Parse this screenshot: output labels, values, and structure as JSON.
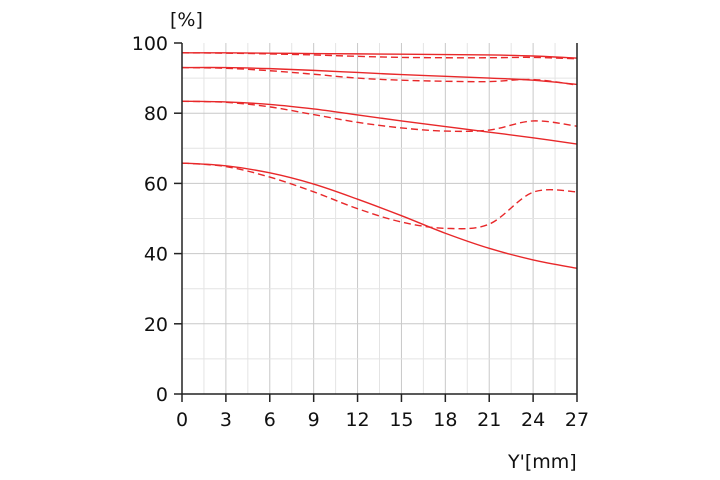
{
  "chart_data": {
    "type": "line",
    "title": "",
    "xlabel": "Y'[mm]",
    "ylabel": "[%]",
    "xlim": [
      0,
      27
    ],
    "ylim": [
      0,
      100
    ],
    "xticks": [
      0,
      3,
      6,
      9,
      12,
      15,
      18,
      21,
      24,
      27
    ],
    "yticks": [
      0,
      20,
      40,
      60,
      80,
      100
    ],
    "grid": true,
    "legend": "none",
    "line_color": "#e8282a",
    "series": [
      {
        "style": "solid",
        "x": [
          0,
          3,
          6,
          9,
          12,
          15,
          18,
          21,
          24,
          27
        ],
        "y": [
          97.2,
          97.2,
          97.1,
          97.0,
          96.9,
          96.8,
          96.7,
          96.6,
          96.3,
          95.7
        ]
      },
      {
        "style": "dashed",
        "x": [
          0,
          3,
          6,
          9,
          12,
          15,
          18,
          21,
          24,
          27
        ],
        "y": [
          97.2,
          97.1,
          96.9,
          96.6,
          96.2,
          95.9,
          95.8,
          95.8,
          95.9,
          95.5
        ]
      },
      {
        "style": "solid",
        "x": [
          0,
          3,
          6,
          9,
          12,
          15,
          18,
          21,
          24,
          27
        ],
        "y": [
          93.0,
          93.0,
          92.7,
          92.2,
          91.6,
          91.0,
          90.5,
          90.0,
          89.4,
          88.2
        ]
      },
      {
        "style": "dashed",
        "x": [
          0,
          3,
          6,
          9,
          12,
          15,
          18,
          21,
          24,
          27
        ],
        "y": [
          93.0,
          92.8,
          92.1,
          91.1,
          90.0,
          89.4,
          89.1,
          89.0,
          89.6,
          88.0
        ]
      },
      {
        "style": "solid",
        "x": [
          0,
          3,
          6,
          9,
          12,
          15,
          18,
          21,
          24,
          27
        ],
        "y": [
          83.4,
          83.2,
          82.5,
          81.2,
          79.5,
          77.8,
          76.2,
          74.6,
          73.0,
          71.2
        ]
      },
      {
        "style": "dashed",
        "x": [
          0,
          3,
          6,
          9,
          12,
          15,
          18,
          21,
          24,
          27
        ],
        "y": [
          83.4,
          83.1,
          81.8,
          79.6,
          77.4,
          75.8,
          74.9,
          75.2,
          77.8,
          76.3
        ]
      },
      {
        "style": "solid",
        "x": [
          0,
          3,
          6,
          9,
          12,
          15,
          18,
          21,
          24,
          27
        ],
        "y": [
          65.8,
          65.0,
          63.0,
          59.8,
          55.5,
          50.8,
          45.8,
          41.5,
          38.2,
          35.8
        ]
      },
      {
        "style": "dashed",
        "x": [
          0,
          3,
          6,
          9,
          12,
          15,
          18,
          21,
          24,
          27
        ],
        "y": [
          65.8,
          64.8,
          61.8,
          57.6,
          52.8,
          49.0,
          47.2,
          48.4,
          57.5,
          57.6
        ]
      }
    ]
  }
}
